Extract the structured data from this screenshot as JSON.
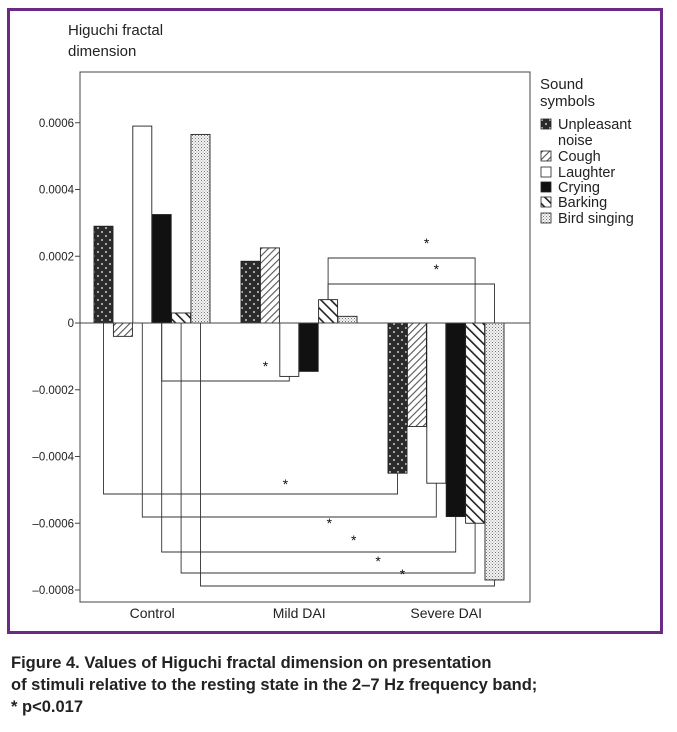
{
  "caption": {
    "line1": "Figure 4. Values of Higuchi fractal dimension on presentation",
    "line2": "of stimuli relative to the resting state in the 2–7 Hz frequency band;",
    "line3": "* p<0.017"
  },
  "chart_data": {
    "type": "bar",
    "ylabel_line1": "Higuchi fractal",
    "ylabel_line2": "dimension",
    "legend_title_line1": "Sound",
    "legend_title_line2": "symbols",
    "legend_placement": "right",
    "ylim": [
      -0.0008,
      0.0008
    ],
    "yticks": [
      0.0006,
      0.0004,
      0.0002,
      0,
      -0.0002,
      -0.0004,
      -0.0006,
      -0.0008
    ],
    "ytick_labels": [
      "0.0006",
      "0.0004",
      "0.0002",
      "0",
      "–0.0002",
      "–0.0004",
      "–0.0006",
      "–0.0008"
    ],
    "grid": false,
    "categories": [
      "Control",
      "Mild DAI",
      "Severe DAI"
    ],
    "series": [
      {
        "name": "Unpleasant noise",
        "values": [
          0.00029,
          0.000185,
          -0.00045
        ],
        "pattern": "checker"
      },
      {
        "name": "Cough",
        "values": [
          -4e-05,
          0.000225,
          -0.00031
        ],
        "pattern": "hatch"
      },
      {
        "name": "Laughter",
        "values": [
          0.00059,
          -0.00016,
          -0.00048
        ],
        "pattern": "white"
      },
      {
        "name": "Crying",
        "values": [
          0.000325,
          -0.000145,
          -0.00058
        ],
        "pattern": "black"
      },
      {
        "name": "Barking",
        "values": [
          3e-05,
          7e-05,
          -0.0006
        ],
        "pattern": "diag"
      },
      {
        "name": "Bird singing",
        "values": [
          0.000565,
          2e-05,
          -0.00077
        ],
        "pattern": "dots"
      }
    ],
    "legend_labels": [
      {
        "line1": "Unpleasant",
        "line2": "noise"
      },
      {
        "line1": "Cough",
        "line2": ""
      },
      {
        "line1": "Laughter",
        "line2": ""
      },
      {
        "line1": "Crying",
        "line2": ""
      },
      {
        "line1": "Barking",
        "line2": ""
      },
      {
        "line1": "Bird singing",
        "line2": ""
      }
    ],
    "significance": [
      {
        "from": [
          1,
          4
        ],
        "to": [
          2,
          4
        ],
        "label": "*"
      },
      {
        "from": [
          1,
          4
        ],
        "to": [
          2,
          5
        ],
        "label": "*"
      },
      {
        "from": [
          0,
          3
        ],
        "to": [
          1,
          2
        ],
        "label": "*"
      },
      {
        "from": [
          0,
          0
        ],
        "to": [
          2,
          0
        ],
        "label": "*"
      },
      {
        "from": [
          0,
          2
        ],
        "to": [
          2,
          2
        ],
        "label": "*"
      },
      {
        "from": [
          0,
          3
        ],
        "to": [
          2,
          3
        ],
        "label": "*"
      },
      {
        "from": [
          0,
          4
        ],
        "to": [
          2,
          4
        ],
        "label": "*"
      },
      {
        "from": [
          0,
          5
        ],
        "to": [
          2,
          5
        ],
        "label": "*"
      }
    ]
  }
}
